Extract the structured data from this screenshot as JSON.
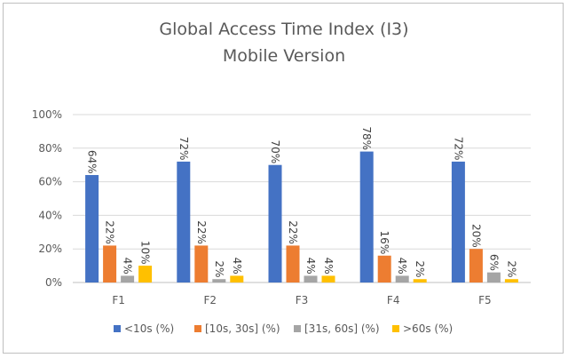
{
  "chart_data": {
    "type": "bar",
    "title": "Global Access Time Index (I3)",
    "subtitle": "Mobile Version",
    "xlabel": "",
    "ylabel": "",
    "categories": [
      "F1",
      "F2",
      "F3",
      "F4",
      "F5"
    ],
    "ylim": [
      0,
      100
    ],
    "yticks": [
      "0%",
      "20%",
      "40%",
      "60%",
      "80%",
      "100%"
    ],
    "grid": true,
    "legend_position": "bottom",
    "series": [
      {
        "name": "<10s (%)",
        "color": "#4472C4",
        "values": [
          64,
          72,
          70,
          78,
          72
        ],
        "labels": [
          "64%",
          "72%",
          "70%",
          "78%",
          "72%"
        ]
      },
      {
        "name": "[10s, 30s] (%)",
        "color": "#ED7D31",
        "values": [
          22,
          22,
          22,
          16,
          20
        ],
        "labels": [
          "22%",
          "22%",
          "22%",
          "16%",
          "20%"
        ]
      },
      {
        "name": "[31s, 60s] (%)",
        "color": "#A5A5A5",
        "values": [
          4,
          2,
          4,
          4,
          6
        ],
        "labels": [
          "4%",
          "2%",
          "4%",
          "4%",
          "6%"
        ]
      },
      {
        "name": ">60s (%)",
        "color": "#FFC000",
        "values": [
          10,
          4,
          4,
          2,
          2
        ],
        "labels": [
          "10%",
          "4%",
          "4%",
          "2%",
          "2%"
        ]
      }
    ]
  }
}
